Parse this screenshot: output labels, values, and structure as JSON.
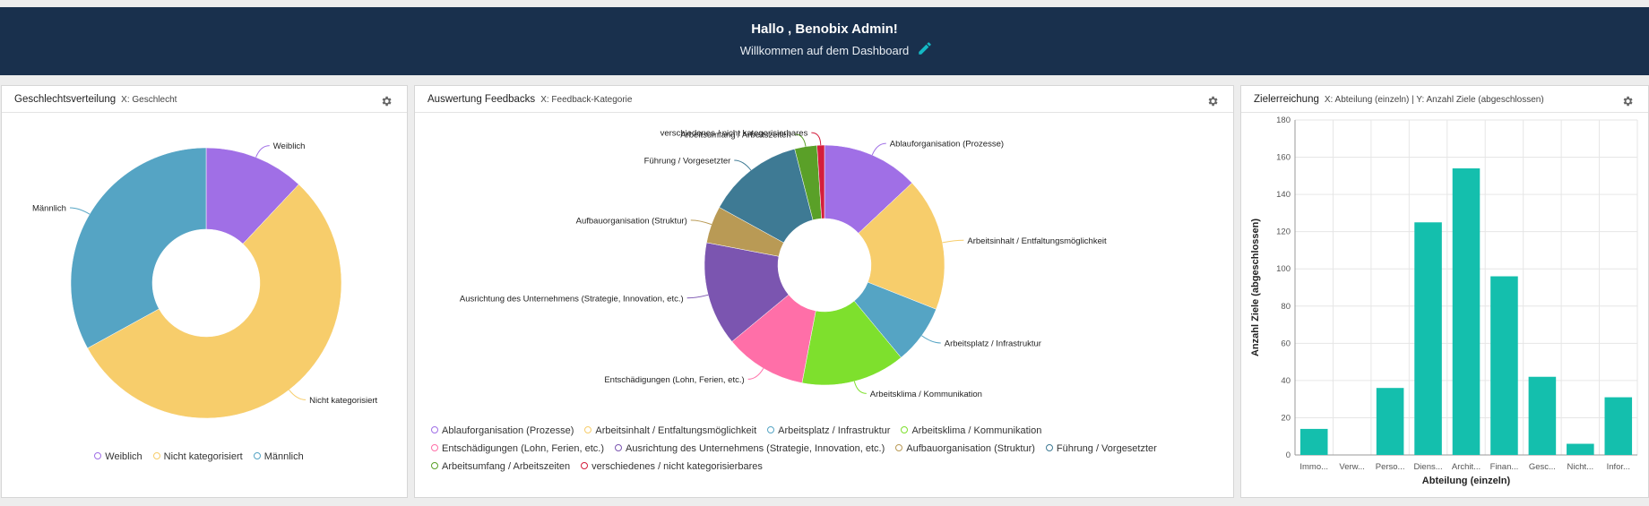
{
  "header": {
    "greeting": "Hallo , Benobix Admin!",
    "subtitle": "Willkommen auf dem Dashboard",
    "edit_icon": "pencil-icon",
    "accent": "#14b8c4"
  },
  "panels": {
    "gender": {
      "title": "Geschlechtsverteilung",
      "subtitle": "X: Geschlecht",
      "gear_icon": "gear-icon"
    },
    "feedback": {
      "title": "Auswertung Feedbacks",
      "subtitle": "X: Feedback-Kategorie",
      "gear_icon": "gear-icon"
    },
    "goals": {
      "title": "Zielerreichung",
      "subtitle": "X: Abteilung (einzeln) | Y: Anzahl Ziele (abgeschlossen)",
      "gear_icon": "gear-icon"
    }
  },
  "chart_data": [
    {
      "type": "pie",
      "donut": true,
      "labels": [
        "Weiblich",
        "Nicht kategorisiert",
        "Männlich"
      ],
      "values": [
        12,
        55,
        33
      ],
      "colors": [
        "#a06fe6",
        "#f7cd6b",
        "#55a4c4"
      ],
      "legend": "bottom"
    },
    {
      "type": "pie",
      "donut": true,
      "labels": [
        "Ablauforganisation (Prozesse)",
        "Arbeitsinhalt / Entfaltungsmöglichkeit",
        "Arbeitsplatz / Infrastruktur",
        "Arbeitsklima / Kommunikation",
        "Entschädigungen (Lohn, Ferien, etc.)",
        "Ausrichtung des Unternehmens (Strategie, Innovation, etc.)",
        "Aufbauorganisation (Struktur)",
        "Führung / Vorgesetzter",
        "Arbeitsumfang / Arbeitszeiten",
        "verschiedenes / nicht kategorisierbares"
      ],
      "values": [
        13,
        18,
        8,
        14,
        11,
        14,
        5,
        13,
        3,
        1
      ],
      "colors": [
        "#a06fe6",
        "#f7cd6b",
        "#55a4c4",
        "#7ee02d",
        "#ff6fa8",
        "#7b55b0",
        "#b99a55",
        "#3e7a94",
        "#5aa028",
        "#d41e3c"
      ],
      "legend": "bottom"
    },
    {
      "type": "bar",
      "categories": [
        "Immo...",
        "Verw...",
        "Perso...",
        "Diens...",
        "Archit...",
        "Finan...",
        "Gesc...",
        "Nicht...",
        "Infor..."
      ],
      "values": [
        14,
        0,
        36,
        125,
        154,
        96,
        42,
        6,
        31
      ],
      "xlabel": "Abteilung (einzeln)",
      "ylabel": "Anzahl Ziele (abgeschlossen)",
      "ylim": [
        0,
        180
      ],
      "yticks": [
        "0",
        "20",
        "40",
        "60",
        "80",
        "100",
        "120",
        "140",
        "160",
        "180"
      ],
      "grid": true,
      "color": "#14bfad"
    }
  ]
}
